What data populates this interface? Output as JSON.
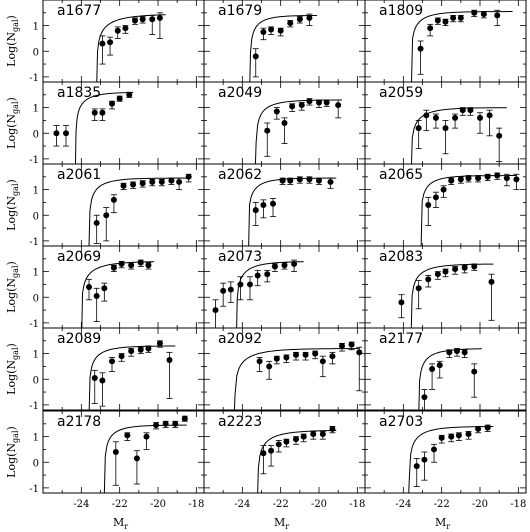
{
  "figure": {
    "ylabel": "Log(N",
    "ylabel_sub": "gal",
    "ylabel_close": ")",
    "xlabel": "M",
    "xlabel_sub": "r"
  },
  "chart_data": {
    "type": "scatter",
    "layout": "6 rows x 3 columns small multiples with shared axes",
    "xlim": [
      -26,
      -17.6
    ],
    "ylim": [
      -1.2,
      2.0
    ],
    "x_ticks": [
      -24,
      -22,
      -20,
      -18
    ],
    "x_ticklabels": [
      "-24",
      "-22",
      "-20",
      "-18"
    ],
    "y_ticks": [
      -1,
      0,
      1
    ],
    "y_ticklabels": [
      "-1",
      "0",
      "1"
    ],
    "series_style": "black filled points with vertical error bars and a solid fitted Schechter-like curve",
    "panels": [
      {
        "name": "a1677",
        "points": [
          [
            -22.9,
            0.3,
            0.3,
            0.8
          ],
          [
            -22.5,
            0.35,
            0.2,
            0.5
          ],
          [
            -22.1,
            0.8,
            0.15,
            0.3
          ],
          [
            -21.7,
            0.9,
            0.1,
            0.2
          ],
          [
            -21.2,
            1.2,
            0.1,
            0.15
          ],
          [
            -20.8,
            1.25,
            0.1,
            0.15
          ],
          [
            -20.3,
            1.25,
            0.15,
            0.6
          ],
          [
            -19.9,
            1.3,
            0.2,
            0.8
          ]
        ],
        "curve": {
          "xc": -23.2,
          "ymax": 1.45,
          "k": 0.35,
          "x0": -26,
          "x1": -19.6
        }
      },
      {
        "name": "a1679",
        "points": [
          [
            -23.3,
            -0.2,
            0.3,
            0.8
          ],
          [
            -22.9,
            0.75,
            0.15,
            0.3
          ],
          [
            -22.5,
            0.85,
            0.1,
            0.2
          ],
          [
            -22.0,
            0.8,
            0.1,
            0.2
          ],
          [
            -21.5,
            1.1,
            0.1,
            0.15
          ],
          [
            -21.0,
            1.25,
            0.1,
            0.15
          ],
          [
            -20.5,
            1.3,
            0.15,
            0.3
          ]
        ],
        "curve": {
          "xc": -23.6,
          "ymax": 1.4,
          "k": 0.6,
          "x0": -26,
          "x1": -20.1
        }
      },
      {
        "name": "a1809",
        "points": [
          [
            -23.1,
            0.1,
            0.3,
            1.0
          ],
          [
            -22.6,
            0.9,
            0.15,
            0.3
          ],
          [
            -22.2,
            1.2,
            0.1,
            0.15
          ],
          [
            -21.8,
            1.15,
            0.1,
            0.15
          ],
          [
            -21.4,
            1.3,
            0.1,
            0.15
          ],
          [
            -21.0,
            1.3,
            0.1,
            0.15
          ],
          [
            -20.3,
            1.5,
            0.1,
            0.15
          ],
          [
            -19.8,
            1.45,
            0.1,
            0.15
          ],
          [
            -19.1,
            1.4,
            0.2,
            0.4
          ]
        ],
        "curve": {
          "xc": -23.6,
          "ymax": 1.55,
          "k": 0.5,
          "x0": -26,
          "x1": -18.3
        }
      },
      {
        "name": "a1835",
        "points": [
          [
            -25.3,
            0.0,
            0.3,
            0.5
          ],
          [
            -24.8,
            0.0,
            0.3,
            0.5
          ],
          [
            -23.3,
            0.8,
            0.15,
            0.3
          ],
          [
            -22.9,
            0.8,
            0.15,
            0.3
          ],
          [
            -22.4,
            1.15,
            0.1,
            0.2
          ],
          [
            -22.0,
            1.35,
            0.1,
            0.1
          ],
          [
            -21.5,
            1.5,
            0.1,
            0.1
          ]
        ],
        "curve": {
          "xc": -24.3,
          "ymax": 1.6,
          "k": 0.55,
          "x0": -26,
          "x1": -21.3
        }
      },
      {
        "name": "a2049",
        "points": [
          [
            -22.7,
            0.1,
            0.3,
            1.0
          ],
          [
            -22.2,
            0.85,
            0.15,
            0.3
          ],
          [
            -21.8,
            0.4,
            0.2,
            0.8
          ],
          [
            -21.4,
            1.05,
            0.1,
            0.2
          ],
          [
            -20.9,
            1.1,
            0.1,
            0.2
          ],
          [
            -20.5,
            1.25,
            0.1,
            0.15
          ],
          [
            -20.0,
            1.2,
            0.1,
            0.2
          ],
          [
            -19.6,
            1.2,
            0.1,
            0.15
          ],
          [
            -19.0,
            1.1,
            0.2,
            0.5
          ]
        ],
        "curve": {
          "xc": -23.3,
          "ymax": 1.3,
          "k": 0.5,
          "x0": -26,
          "x1": -18.8
        }
      },
      {
        "name": "a2059",
        "points": [
          [
            -23.2,
            0.2,
            0.3,
            0.8
          ],
          [
            -22.8,
            0.7,
            0.2,
            0.6
          ],
          [
            -22.3,
            0.6,
            0.15,
            0.4
          ],
          [
            -21.8,
            0.2,
            0.3,
            1.0
          ],
          [
            -21.3,
            0.6,
            0.15,
            0.4
          ],
          [
            -20.9,
            0.9,
            0.1,
            0.2
          ],
          [
            -20.5,
            0.9,
            0.1,
            0.2
          ],
          [
            -20.0,
            0.6,
            0.2,
            0.6
          ],
          [
            -19.5,
            0.7,
            0.2,
            0.8
          ],
          [
            -19.0,
            -0.1,
            0.3,
            1.0
          ]
        ],
        "curve": {
          "xc": -23.6,
          "ymax": 1.0,
          "k": 0.45,
          "x0": -26,
          "x1": -18.6
        }
      },
      {
        "name": "a2061",
        "points": [
          [
            -23.2,
            -0.3,
            0.3,
            0.8
          ],
          [
            -22.7,
            0.0,
            0.3,
            1.0
          ],
          [
            -22.3,
            0.6,
            0.2,
            0.5
          ],
          [
            -21.8,
            1.15,
            0.1,
            0.15
          ],
          [
            -21.3,
            1.2,
            0.1,
            0.15
          ],
          [
            -20.8,
            1.25,
            0.1,
            0.15
          ],
          [
            -20.3,
            1.3,
            0.1,
            0.15
          ],
          [
            -19.8,
            1.3,
            0.1,
            0.15
          ],
          [
            -19.3,
            1.35,
            0.1,
            0.15
          ],
          [
            -18.9,
            1.3,
            0.15,
            0.3
          ],
          [
            -18.4,
            1.5,
            0.1,
            0.2
          ]
        ],
        "curve": {
          "xc": -23.6,
          "ymax": 1.45,
          "k": 0.5,
          "x0": -26,
          "x1": -18.4
        }
      },
      {
        "name": "a2062",
        "points": [
          [
            -23.3,
            0.2,
            0.3,
            0.6
          ],
          [
            -22.9,
            0.4,
            0.2,
            0.5
          ],
          [
            -22.4,
            0.45,
            0.2,
            0.5
          ],
          [
            -21.9,
            1.35,
            0.1,
            0.15
          ],
          [
            -21.5,
            1.35,
            0.1,
            0.15
          ],
          [
            -21.0,
            1.4,
            0.1,
            0.15
          ],
          [
            -20.5,
            1.4,
            0.1,
            0.15
          ],
          [
            -20.0,
            1.35,
            0.1,
            0.15
          ],
          [
            -19.4,
            1.3,
            0.15,
            0.25
          ]
        ],
        "curve": {
          "xc": -23.7,
          "ymax": 1.45,
          "k": 0.55,
          "x0": -26,
          "x1": -19.1
        }
      },
      {
        "name": "a2065",
        "points": [
          [
            -22.7,
            0.4,
            0.3,
            0.8
          ],
          [
            -22.3,
            0.7,
            0.2,
            0.4
          ],
          [
            -21.9,
            1.0,
            0.15,
            0.3
          ],
          [
            -21.5,
            1.35,
            0.1,
            0.15
          ],
          [
            -21.0,
            1.4,
            0.1,
            0.15
          ],
          [
            -20.6,
            1.45,
            0.1,
            0.15
          ],
          [
            -20.1,
            1.45,
            0.1,
            0.15
          ],
          [
            -19.6,
            1.5,
            0.1,
            0.15
          ],
          [
            -19.1,
            1.55,
            0.1,
            0.15
          ],
          [
            -18.6,
            1.45,
            0.15,
            0.3
          ],
          [
            -18.1,
            1.4,
            0.2,
            0.4
          ]
        ],
        "curve": {
          "xc": -23.1,
          "ymax": 1.55,
          "k": 0.55,
          "x0": -26,
          "x1": -18.1
        }
      },
      {
        "name": "a2069",
        "points": [
          [
            -23.6,
            0.4,
            0.3,
            0.5
          ],
          [
            -23.2,
            0.05,
            0.3,
            1.0
          ],
          [
            -22.8,
            0.35,
            0.2,
            0.5
          ],
          [
            -22.3,
            1.15,
            0.1,
            0.15
          ],
          [
            -21.9,
            1.3,
            0.1,
            0.15
          ],
          [
            -21.4,
            1.25,
            0.1,
            0.15
          ],
          [
            -20.9,
            1.35,
            0.1,
            0.15
          ],
          [
            -20.5,
            1.25,
            0.1,
            0.15
          ]
        ],
        "curve": {
          "xc": -24.0,
          "ymax": 1.4,
          "k": 0.4,
          "x0": -26,
          "x1": -20.2
        }
      },
      {
        "name": "a2073",
        "points": [
          [
            -25.4,
            -0.5,
            0.4,
            0.8
          ],
          [
            -25.0,
            0.25,
            0.3,
            0.6
          ],
          [
            -24.6,
            0.3,
            0.3,
            0.5
          ],
          [
            -24.1,
            0.5,
            0.3,
            0.6
          ],
          [
            -23.6,
            0.5,
            0.3,
            0.6
          ],
          [
            -23.2,
            0.85,
            0.2,
            0.4
          ],
          [
            -22.7,
            0.9,
            0.15,
            0.3
          ],
          [
            -22.3,
            1.2,
            0.1,
            0.2
          ],
          [
            -21.8,
            1.25,
            0.1,
            0.15
          ],
          [
            -21.3,
            1.3,
            0.15,
            0.3
          ]
        ],
        "curve": {
          "xc": -24.3,
          "ymax": 1.4,
          "k": 0.45,
          "x0": -26,
          "x1": -20.8
        }
      },
      {
        "name": "a2083",
        "points": [
          [
            -24.1,
            -0.2,
            0.3,
            0.6
          ],
          [
            -23.2,
            0.35,
            0.3,
            0.8
          ],
          [
            -22.7,
            0.7,
            0.15,
            0.3
          ],
          [
            -22.2,
            0.9,
            0.1,
            0.2
          ],
          [
            -21.8,
            1.0,
            0.1,
            0.2
          ],
          [
            -21.3,
            1.1,
            0.1,
            0.2
          ],
          [
            -20.8,
            1.15,
            0.1,
            0.2
          ],
          [
            -20.3,
            1.2,
            0.1,
            0.15
          ],
          [
            -19.4,
            0.6,
            0.3,
            1.5
          ]
        ],
        "curve": {
          "xc": -23.6,
          "ymax": 1.3,
          "k": 0.45,
          "x0": -26,
          "x1": -19.3
        }
      },
      {
        "name": "a2089",
        "points": [
          [
            -23.3,
            0.05,
            0.3,
            1.0
          ],
          [
            -22.9,
            -0.05,
            0.3,
            1.0
          ],
          [
            -22.4,
            0.7,
            0.15,
            0.4
          ],
          [
            -21.9,
            0.9,
            0.1,
            0.2
          ],
          [
            -21.4,
            1.1,
            0.1,
            0.2
          ],
          [
            -20.9,
            1.15,
            0.1,
            0.15
          ],
          [
            -20.5,
            1.2,
            0.1,
            0.15
          ],
          [
            -19.9,
            1.4,
            0.1,
            0.15
          ],
          [
            -19.4,
            0.75,
            0.3,
            1.5
          ]
        ],
        "curve": {
          "xc": -23.6,
          "ymax": 1.3,
          "k": 0.5,
          "x0": -26,
          "x1": -19.1
        }
      },
      {
        "name": "a2092",
        "points": [
          [
            -23.1,
            0.7,
            0.15,
            0.4
          ],
          [
            -22.6,
            0.5,
            0.2,
            0.5
          ],
          [
            -22.2,
            0.8,
            0.1,
            0.2
          ],
          [
            -21.7,
            0.85,
            0.1,
            0.2
          ],
          [
            -21.2,
            0.95,
            0.1,
            0.2
          ],
          [
            -20.7,
            0.95,
            0.1,
            0.2
          ],
          [
            -20.2,
            1.0,
            0.1,
            0.2
          ],
          [
            -19.8,
            0.7,
            0.2,
            0.6
          ],
          [
            -19.3,
            0.9,
            0.15,
            0.3
          ],
          [
            -18.8,
            1.3,
            0.1,
            0.2
          ],
          [
            -18.3,
            1.35,
            0.1,
            0.2
          ],
          [
            -17.9,
            1.05,
            0.2,
            1.5
          ]
        ],
        "curve": {
          "xc": -24.4,
          "ymax": 1.2,
          "k": 0.35,
          "x0": -26,
          "x1": -17.9
        }
      },
      {
        "name": "a2177",
        "points": [
          [
            -22.9,
            -0.7,
            0.3,
            0.8
          ],
          [
            -22.5,
            0.4,
            0.2,
            0.8
          ],
          [
            -22.1,
            0.55,
            0.15,
            0.5
          ],
          [
            -21.6,
            1.05,
            0.1,
            0.2
          ],
          [
            -21.2,
            1.1,
            0.1,
            0.2
          ],
          [
            -20.8,
            1.05,
            0.1,
            0.2
          ],
          [
            -20.3,
            0.3,
            0.3,
            1.0
          ]
        ],
        "curve": {
          "xc": -23.2,
          "ymax": 1.2,
          "k": 0.5,
          "x0": -26,
          "x1": -19.9
        }
      },
      {
        "name": "a2178",
        "points": [
          [
            -22.2,
            0.4,
            0.4,
            1.3
          ],
          [
            -21.6,
            1.05,
            0.1,
            0.2
          ],
          [
            -21.1,
            0.15,
            0.3,
            1.0
          ],
          [
            -20.6,
            1.0,
            0.15,
            0.5
          ],
          [
            -20.1,
            1.45,
            0.1,
            0.15
          ],
          [
            -19.6,
            1.5,
            0.1,
            0.15
          ],
          [
            -19.1,
            1.5,
            0.1,
            0.15
          ],
          [
            -18.6,
            1.7,
            0.1,
            0.1
          ]
        ],
        "curve": {
          "xc": -22.8,
          "ymax": 1.45,
          "k": 0.55,
          "x0": -26,
          "x1": -18.5
        }
      },
      {
        "name": "a2223",
        "points": [
          [
            -22.9,
            0.35,
            0.3,
            0.8
          ],
          [
            -22.5,
            0.45,
            0.2,
            0.6
          ],
          [
            -22.1,
            0.7,
            0.15,
            0.3
          ],
          [
            -21.7,
            0.8,
            0.1,
            0.2
          ],
          [
            -21.2,
            0.9,
            0.1,
            0.2
          ],
          [
            -20.8,
            1.0,
            0.1,
            0.2
          ],
          [
            -20.3,
            1.1,
            0.1,
            0.2
          ],
          [
            -19.8,
            1.1,
            0.1,
            0.2
          ],
          [
            -19.3,
            1.3,
            0.1,
            0.15
          ]
        ],
        "curve": {
          "xc": -23.2,
          "ymax": 1.25,
          "k": 0.4,
          "x0": -26,
          "x1": -19.1
        }
      },
      {
        "name": "a2703",
        "points": [
          [
            -23.3,
            -0.15,
            0.3,
            0.8
          ],
          [
            -22.9,
            0.1,
            0.3,
            0.8
          ],
          [
            -22.4,
            0.5,
            0.2,
            0.5
          ],
          [
            -22.0,
            0.95,
            0.1,
            0.2
          ],
          [
            -21.5,
            1.0,
            0.1,
            0.2
          ],
          [
            -21.1,
            1.05,
            0.1,
            0.2
          ],
          [
            -20.6,
            1.1,
            0.1,
            0.2
          ],
          [
            -20.1,
            1.3,
            0.1,
            0.15
          ],
          [
            -19.6,
            1.35,
            0.1,
            0.15
          ]
        ],
        "curve": {
          "xc": -23.7,
          "ymax": 1.4,
          "k": 0.45,
          "x0": -26,
          "x1": -19.3
        }
      }
    ]
  }
}
